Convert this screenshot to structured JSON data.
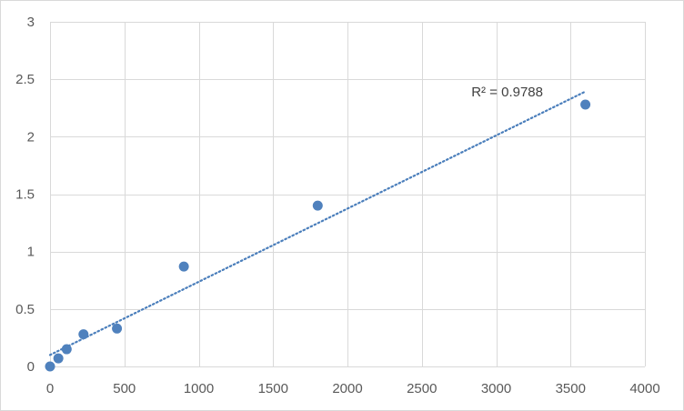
{
  "chart_data": {
    "type": "scatter",
    "title": "",
    "xlabel": "",
    "ylabel": "",
    "xlim": [
      0,
      4000
    ],
    "ylim": [
      0,
      3
    ],
    "xticks": [
      0,
      500,
      1000,
      1500,
      2000,
      2500,
      3000,
      3500,
      4000
    ],
    "yticks": [
      0,
      0.5,
      1,
      1.5,
      2,
      2.5,
      3
    ],
    "grid": true,
    "legend": "none",
    "series": [
      {
        "x": [
          0,
          56,
          112,
          225,
          450,
          900,
          1800,
          3600
        ],
        "y": [
          0,
          0.07,
          0.15,
          0.28,
          0.33,
          0.87,
          1.4,
          2.28
        ],
        "color": "#4f81bd"
      }
    ],
    "trendline": {
      "type": "linear",
      "color": "#4a7ebb",
      "style": "dotted",
      "x_range": [
        0,
        3600
      ],
      "slope": 0.000637,
      "intercept": 0.1
    },
    "annotations": [
      {
        "text": "R² = 0.9788"
      }
    ]
  }
}
